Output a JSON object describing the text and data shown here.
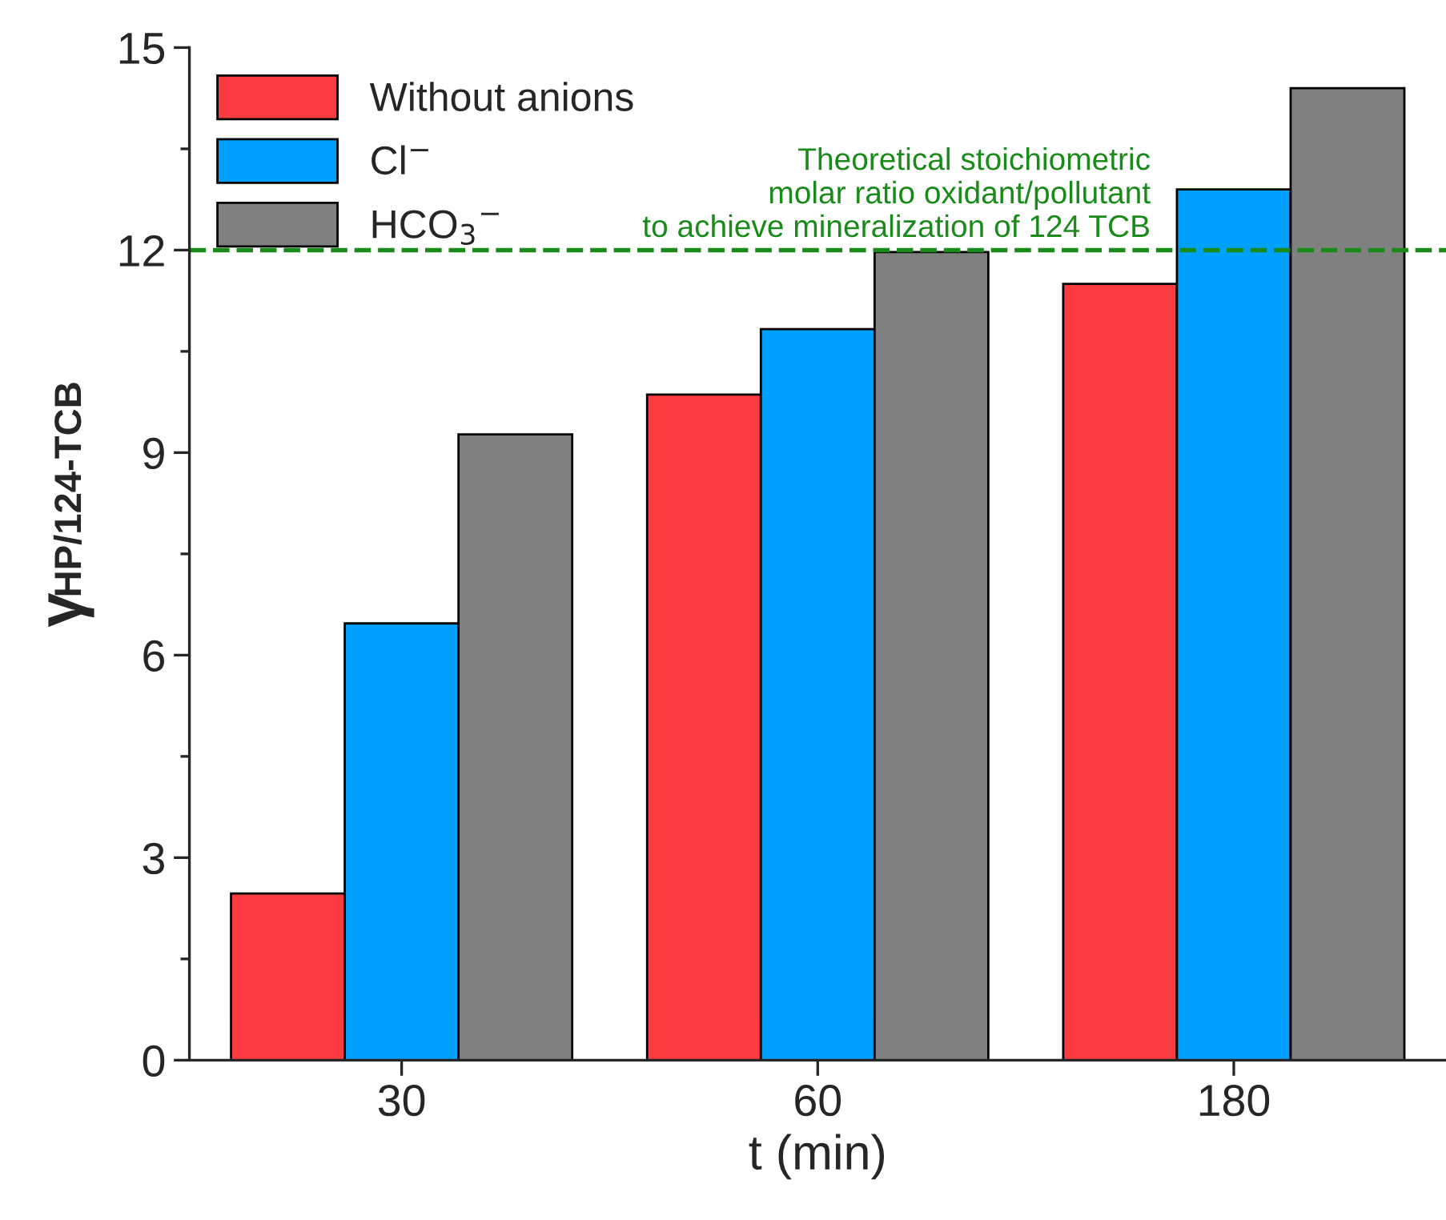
{
  "chart_data": {
    "type": "bar",
    "xlabel": "t (min)",
    "ylabel": "γ$_{HP/124-TCB}$",
    "categories": [
      "30",
      "60",
      "180"
    ],
    "series": [
      {
        "name": "Without anions",
        "color": "#fa3c40",
        "values": [
          2.47,
          9.86,
          11.5
        ]
      },
      {
        "name": "Cl$^{−}$",
        "color": "#00a0ff",
        "values": [
          6.47,
          10.83,
          12.9
        ]
      },
      {
        "name": "HCO$_{3}$$^{−}$",
        "color": "#808080",
        "values": [
          9.27,
          11.97,
          14.4
        ]
      }
    ],
    "ylim": [
      0,
      15
    ],
    "yticks": [
      0,
      3,
      6,
      9,
      12,
      15
    ],
    "grid": false,
    "legend": "top left",
    "ref_lines": [
      {
        "axis": "y",
        "value": 12,
        "label": "Theoretical stoichiometric\nmolar ratio oxidant/pollutant\nto achieve mineralization of 124 TCB",
        "color": "#1a8a1a",
        "line_style": "dashed"
      }
    ]
  }
}
